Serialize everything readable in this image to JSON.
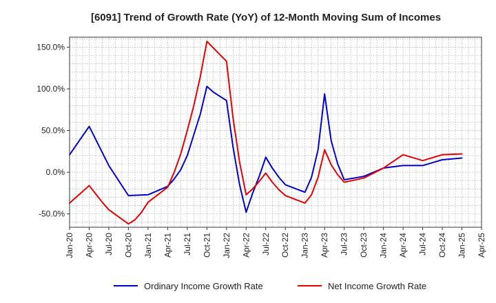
{
  "chart_data": {
    "type": "line",
    "title": "[6091]  Trend of Growth Rate (YoY) of 12-Month Moving Sum of Incomes",
    "xlabel": "",
    "ylabel": "",
    "ylim": [
      -66,
      162
    ],
    "grid": true,
    "legend_position": "bottom",
    "x_ticks": [
      "Jan-20",
      "Apr-20",
      "Jul-20",
      "Oct-20",
      "Jan-21",
      "Apr-21",
      "Jul-21",
      "Oct-21",
      "Jan-22",
      "Apr-22",
      "Jul-22",
      "Oct-22",
      "Jan-23",
      "Apr-23",
      "Jul-23",
      "Oct-23",
      "Jan-24",
      "Apr-24",
      "Jul-24",
      "Oct-24",
      "Jan-25",
      "Apr-25"
    ],
    "y_ticks": [
      {
        "value": 150,
        "label": "150.0%"
      },
      {
        "value": 100,
        "label": "100.0%"
      },
      {
        "value": 50,
        "label": "50.0%"
      },
      {
        "value": 0,
        "label": "0.0%"
      },
      {
        "value": -50,
        "label": "-50.0%"
      }
    ],
    "series": [
      {
        "name": "Ordinary Income Growth Rate",
        "color": "#0000cc",
        "points": [
          [
            "Jan-20",
            21
          ],
          [
            "Apr-20",
            55
          ],
          [
            "Jul-20",
            8
          ],
          [
            "Oct-20",
            -28
          ],
          [
            "Jan-21",
            -27
          ],
          [
            "Apr-21",
            -17
          ],
          [
            "May-21",
            -8
          ],
          [
            "Jun-21",
            3
          ],
          [
            "Jul-21",
            20
          ],
          [
            "Aug-21",
            45
          ],
          [
            "Sep-21",
            70
          ],
          [
            "Oct-21",
            103
          ],
          [
            "Nov-21",
            96
          ],
          [
            "Dec-21",
            91
          ],
          [
            "Jan-22",
            86
          ],
          [
            "Feb-22",
            30
          ],
          [
            "Mar-22",
            -15
          ],
          [
            "Apr-22",
            -48
          ],
          [
            "May-22",
            -25
          ],
          [
            "Jun-22",
            -5
          ],
          [
            "Jul-22",
            18
          ],
          [
            "Aug-22",
            5
          ],
          [
            "Sep-22",
            -6
          ],
          [
            "Oct-22",
            -15
          ],
          [
            "Nov-22",
            -18
          ],
          [
            "Dec-22",
            -21
          ],
          [
            "Jan-23",
            -24
          ],
          [
            "Feb-23",
            -6
          ],
          [
            "Mar-23",
            27
          ],
          [
            "Apr-23",
            94
          ],
          [
            "May-23",
            38
          ],
          [
            "Jun-23",
            10
          ],
          [
            "Jul-23",
            -9
          ],
          [
            "Oct-23",
            -5
          ],
          [
            "Jan-24",
            5
          ],
          [
            "Apr-24",
            8
          ],
          [
            "Jul-24",
            8
          ],
          [
            "Oct-24",
            15
          ],
          [
            "Jan-25",
            17
          ]
        ]
      },
      {
        "name": "Net Income Growth Rate",
        "color": "#e60000",
        "points": [
          [
            "Jan-20",
            -37
          ],
          [
            "Feb-20",
            -30
          ],
          [
            "Mar-20",
            -23
          ],
          [
            "Apr-20",
            -16
          ],
          [
            "May-20",
            -26
          ],
          [
            "Jun-20",
            -36
          ],
          [
            "Jul-20",
            -45
          ],
          [
            "Oct-20",
            -62
          ],
          [
            "Nov-20",
            -57
          ],
          [
            "Dec-20",
            -48
          ],
          [
            "Jan-21",
            -36
          ],
          [
            "Apr-21",
            -18
          ],
          [
            "May-21",
            0
          ],
          [
            "Jun-21",
            22
          ],
          [
            "Jul-21",
            50
          ],
          [
            "Aug-21",
            80
          ],
          [
            "Sep-21",
            115
          ],
          [
            "Oct-21",
            157
          ],
          [
            "Nov-21",
            149
          ],
          [
            "Dec-21",
            141
          ],
          [
            "Jan-22",
            133
          ],
          [
            "Feb-22",
            65
          ],
          [
            "Mar-22",
            12
          ],
          [
            "Apr-22",
            -27
          ],
          [
            "May-22",
            -20
          ],
          [
            "Jun-22",
            -11
          ],
          [
            "Jul-22",
            -1
          ],
          [
            "Aug-22",
            -12
          ],
          [
            "Sep-22",
            -21
          ],
          [
            "Oct-22",
            -28
          ],
          [
            "Nov-22",
            -31
          ],
          [
            "Dec-22",
            -34
          ],
          [
            "Jan-23",
            -37
          ],
          [
            "Feb-23",
            -27
          ],
          [
            "Mar-23",
            -6
          ],
          [
            "Apr-23",
            27
          ],
          [
            "May-23",
            9
          ],
          [
            "Jun-23",
            -3
          ],
          [
            "Jul-23",
            -12
          ],
          [
            "Oct-23",
            -7
          ],
          [
            "Jan-24",
            5
          ],
          [
            "Apr-24",
            21
          ],
          [
            "Jul-24",
            14
          ],
          [
            "Oct-24",
            21
          ],
          [
            "Jan-25",
            22
          ]
        ]
      }
    ]
  }
}
